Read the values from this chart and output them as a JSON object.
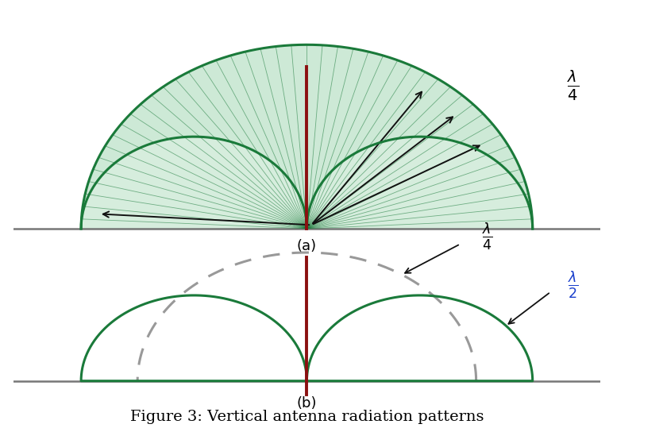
{
  "fig_width": 8.4,
  "fig_height": 5.39,
  "bg_color": "#ffffff",
  "green_fill": "#5cb87a",
  "green_fill_alpha": 0.3,
  "green_edge": "#1a7a3a",
  "green_edge_width": 2.2,
  "dashed_color": "#999999",
  "antenna_color": "#8b1010",
  "ground_color": "#777777",
  "arrow_color": "#111111",
  "label_a": "(a)",
  "label_b": "(b)",
  "title": "Figure 3: Vertical antenna radiation patterns",
  "lambda_4_label": "$\\frac{\\lambda}{4}$",
  "lambda_2_label": "$\\frac{\\lambda}{2}$",
  "lambda_4_color": "#000000",
  "lambda_2_color": "#1a3fcc"
}
